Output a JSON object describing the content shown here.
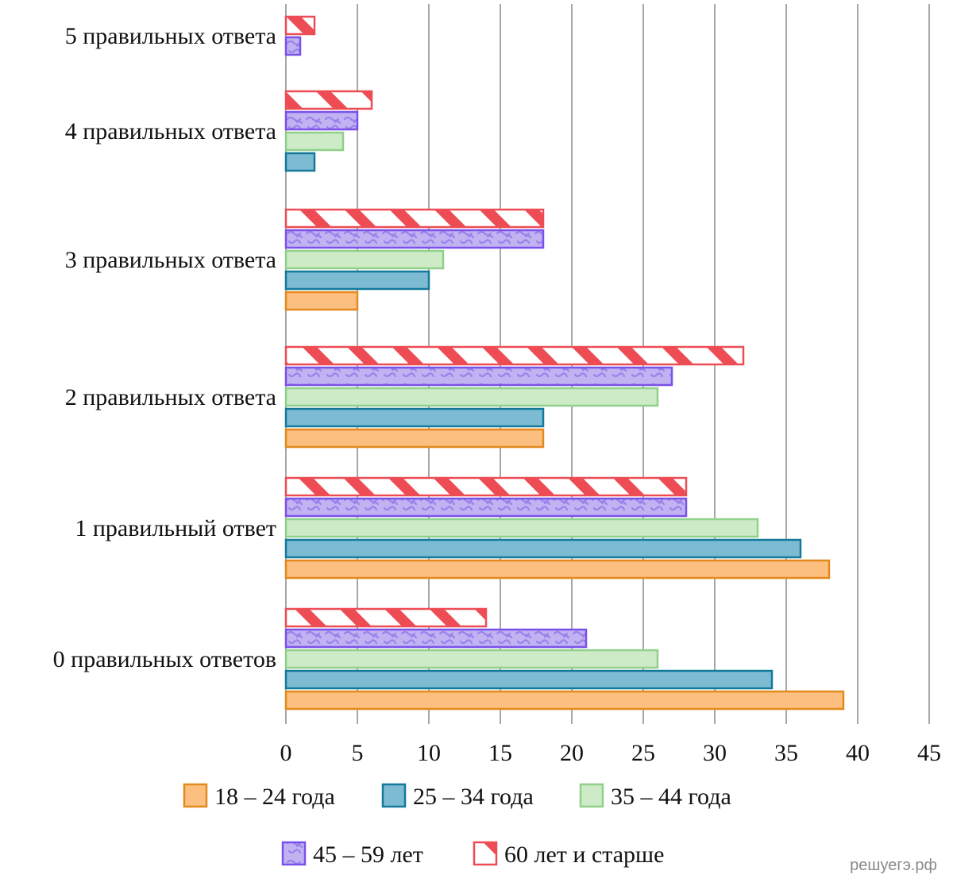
{
  "chart_data": {
    "type": "bar",
    "orientation": "horizontal",
    "categories": [
      "0 правильных ответов",
      "1 правильный ответ",
      "2 правильных ответа",
      "3 правильных ответа",
      "4 правильных ответа",
      "5 правильных ответа"
    ],
    "series": [
      {
        "name": "18 – 24 года",
        "values": [
          39,
          38,
          18,
          5,
          0,
          0
        ],
        "color": "#fdbf7f",
        "stroke": "#e3891e",
        "pattern": "solid"
      },
      {
        "name": "25 – 34 года",
        "values": [
          34,
          36,
          18,
          10,
          2,
          0
        ],
        "color": "#7dbbd3",
        "stroke": "#137a9c",
        "pattern": "solid"
      },
      {
        "name": "35 – 44 года",
        "values": [
          26,
          33,
          26,
          11,
          4,
          0
        ],
        "color": "#cdebc6",
        "stroke": "#8fd08a",
        "pattern": "solid"
      },
      {
        "name": "45 – 59 лет",
        "values": [
          21,
          28,
          27,
          18,
          5,
          1
        ],
        "color": "#c1b2f2",
        "stroke": "#7a52ea",
        "pattern": "squiggle"
      },
      {
        "name": "60 лет и старше",
        "values": [
          14,
          28,
          32,
          18,
          6,
          2
        ],
        "color": "#ffffff",
        "stroke": "#ee4c54",
        "pattern": "diagonal-stripes"
      }
    ],
    "xticks": [
      "0",
      "5",
      "10",
      "15",
      "20",
      "25",
      "30",
      "35",
      "40",
      "45"
    ],
    "xlim": [
      0,
      45
    ],
    "grid": "vertical",
    "legend": "bottom",
    "title": "",
    "xlabel": "",
    "ylabel": ""
  },
  "watermark": "решуегэ.рф"
}
